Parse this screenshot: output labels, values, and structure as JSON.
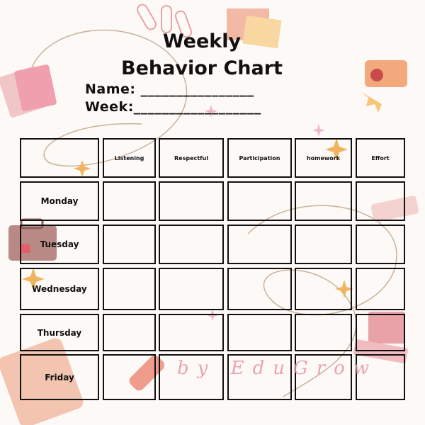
{
  "header": {
    "title": "Weekly Behavior Chart",
    "name_field": "Name: ________________",
    "week_field": "Week:__________________"
  },
  "table": {
    "columns": [
      "Listening",
      "Respectful",
      "Participation",
      "homework",
      "Effort"
    ],
    "rows": [
      "Monday",
      "Tuesday",
      "Wednesday",
      "Thursday",
      "Friday"
    ]
  },
  "footer": {
    "watermark": "by EduGrow"
  }
}
